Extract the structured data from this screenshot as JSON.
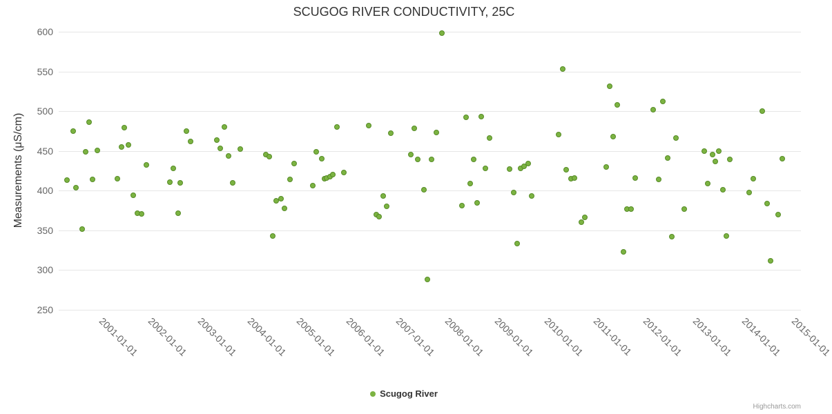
{
  "credits": "Highcharts.com",
  "chart_data": {
    "type": "scatter",
    "title": "SCUGOG RIVER CONDUCTIVITY, 25C",
    "xlabel": "",
    "ylabel": "Measurements (μS/cm)",
    "ylim": [
      250,
      600
    ],
    "yticks": [
      250,
      300,
      350,
      400,
      450,
      500,
      550,
      600
    ],
    "xlim": [
      2000.1,
      2015.1
    ],
    "xticks": [
      {
        "value": 2001,
        "label": "2001-01-01"
      },
      {
        "value": 2002,
        "label": "2002-01-01"
      },
      {
        "value": 2003,
        "label": "2003-01-01"
      },
      {
        "value": 2004,
        "label": "2004-01-01"
      },
      {
        "value": 2005,
        "label": "2005-01-01"
      },
      {
        "value": 2006,
        "label": "2006-01-01"
      },
      {
        "value": 2007,
        "label": "2007-01-01"
      },
      {
        "value": 2008,
        "label": "2008-01-01"
      },
      {
        "value": 2009,
        "label": "2009-01-01"
      },
      {
        "value": 2010,
        "label": "2010-01-01"
      },
      {
        "value": 2011,
        "label": "2011-01-01"
      },
      {
        "value": 2012,
        "label": "2012-01-01"
      },
      {
        "value": 2013,
        "label": "2013-01-01"
      },
      {
        "value": 2014,
        "label": "2014-01-01"
      },
      {
        "value": 2015,
        "label": "2015-01-01"
      }
    ],
    "grid": true,
    "legend_position": "bottom",
    "series": [
      {
        "name": "Scugog River",
        "color": "#7cb342",
        "border_color": "#568b27",
        "points": [
          [
            2000.27,
            413
          ],
          [
            2000.39,
            475
          ],
          [
            2000.45,
            404
          ],
          [
            2000.58,
            352
          ],
          [
            2000.64,
            449
          ],
          [
            2000.71,
            486
          ],
          [
            2000.78,
            414
          ],
          [
            2000.88,
            451
          ],
          [
            2001.28,
            415
          ],
          [
            2001.37,
            455
          ],
          [
            2001.43,
            479
          ],
          [
            2001.51,
            458
          ],
          [
            2001.6,
            394
          ],
          [
            2001.69,
            372
          ],
          [
            2001.78,
            371
          ],
          [
            2001.87,
            432
          ],
          [
            2002.34,
            411
          ],
          [
            2002.42,
            428
          ],
          [
            2002.51,
            372
          ],
          [
            2002.56,
            410
          ],
          [
            2002.68,
            475
          ],
          [
            2002.76,
            462
          ],
          [
            2003.29,
            464
          ],
          [
            2003.37,
            453
          ],
          [
            2003.45,
            480
          ],
          [
            2003.53,
            444
          ],
          [
            2003.62,
            410
          ],
          [
            2003.77,
            452
          ],
          [
            2004.29,
            445
          ],
          [
            2004.36,
            443
          ],
          [
            2004.43,
            343
          ],
          [
            2004.5,
            387
          ],
          [
            2004.59,
            390
          ],
          [
            2004.66,
            378
          ],
          [
            2004.77,
            414
          ],
          [
            2004.86,
            434
          ],
          [
            2005.24,
            406
          ],
          [
            2005.31,
            449
          ],
          [
            2005.41,
            440
          ],
          [
            2005.47,
            415
          ],
          [
            2005.52,
            416
          ],
          [
            2005.58,
            418
          ],
          [
            2005.64,
            420
          ],
          [
            2005.72,
            480
          ],
          [
            2005.86,
            423
          ],
          [
            2006.37,
            482
          ],
          [
            2006.52,
            370
          ],
          [
            2006.58,
            367
          ],
          [
            2006.66,
            393
          ],
          [
            2006.73,
            380
          ],
          [
            2006.81,
            472
          ],
          [
            2007.21,
            445
          ],
          [
            2007.29,
            478
          ],
          [
            2007.36,
            439
          ],
          [
            2007.48,
            401
          ],
          [
            2007.55,
            288
          ],
          [
            2007.63,
            439
          ],
          [
            2007.73,
            473
          ],
          [
            2007.84,
            598
          ],
          [
            2008.25,
            381
          ],
          [
            2008.33,
            492
          ],
          [
            2008.41,
            409
          ],
          [
            2008.48,
            439
          ],
          [
            2008.55,
            385
          ],
          [
            2008.64,
            493
          ],
          [
            2008.72,
            428
          ],
          [
            2008.8,
            466
          ],
          [
            2009.21,
            427
          ],
          [
            2009.29,
            398
          ],
          [
            2009.36,
            333
          ],
          [
            2009.43,
            428
          ],
          [
            2009.51,
            431
          ],
          [
            2009.59,
            434
          ],
          [
            2009.66,
            393
          ],
          [
            2010.2,
            471
          ],
          [
            2010.28,
            553
          ],
          [
            2010.35,
            426
          ],
          [
            2010.45,
            415
          ],
          [
            2010.52,
            416
          ],
          [
            2010.66,
            360
          ],
          [
            2010.73,
            366
          ],
          [
            2011.16,
            430
          ],
          [
            2011.24,
            531
          ],
          [
            2011.31,
            468
          ],
          [
            2011.39,
            508
          ],
          [
            2011.51,
            323
          ],
          [
            2011.59,
            377
          ],
          [
            2011.67,
            377
          ],
          [
            2011.75,
            416
          ],
          [
            2012.12,
            502
          ],
          [
            2012.23,
            414
          ],
          [
            2012.31,
            512
          ],
          [
            2012.4,
            441
          ],
          [
            2012.49,
            342
          ],
          [
            2012.57,
            466
          ],
          [
            2012.74,
            377
          ],
          [
            2013.14,
            450
          ],
          [
            2013.22,
            409
          ],
          [
            2013.31,
            445
          ],
          [
            2013.37,
            437
          ],
          [
            2013.44,
            450
          ],
          [
            2013.52,
            401
          ],
          [
            2013.59,
            343
          ],
          [
            2013.66,
            439
          ],
          [
            2014.06,
            398
          ],
          [
            2014.14,
            415
          ],
          [
            2014.32,
            500
          ],
          [
            2014.41,
            384
          ],
          [
            2014.48,
            312
          ],
          [
            2014.64,
            370
          ],
          [
            2014.73,
            440
          ]
        ]
      }
    ]
  }
}
